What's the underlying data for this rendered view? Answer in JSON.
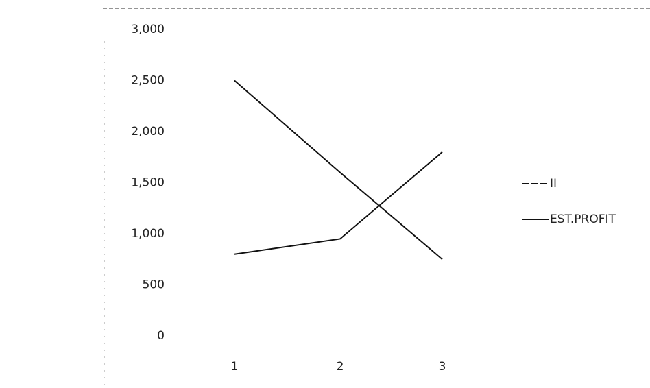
{
  "chart_data": {
    "type": "line",
    "categories": [
      "1",
      "2",
      "3"
    ],
    "series": [
      {
        "name": "II",
        "color": "#111111",
        "values": [
          2500,
          1600,
          750
        ]
      },
      {
        "name": "EST.PROFIT",
        "color": "#111111",
        "values": [
          800,
          950,
          1800
        ]
      }
    ],
    "ylim": [
      0,
      3000
    ],
    "yticks": [
      0,
      500,
      {
        "value": 1000,
        "label": "1,000"
      },
      {
        "value": 1500,
        "label": "1,500"
      },
      {
        "value": 2000,
        "label": "2,000"
      },
      {
        "value": 2500,
        "label": "2,500"
      },
      {
        "value": 3000,
        "label": "3,000"
      }
    ],
    "grid": false,
    "legend": "right"
  }
}
